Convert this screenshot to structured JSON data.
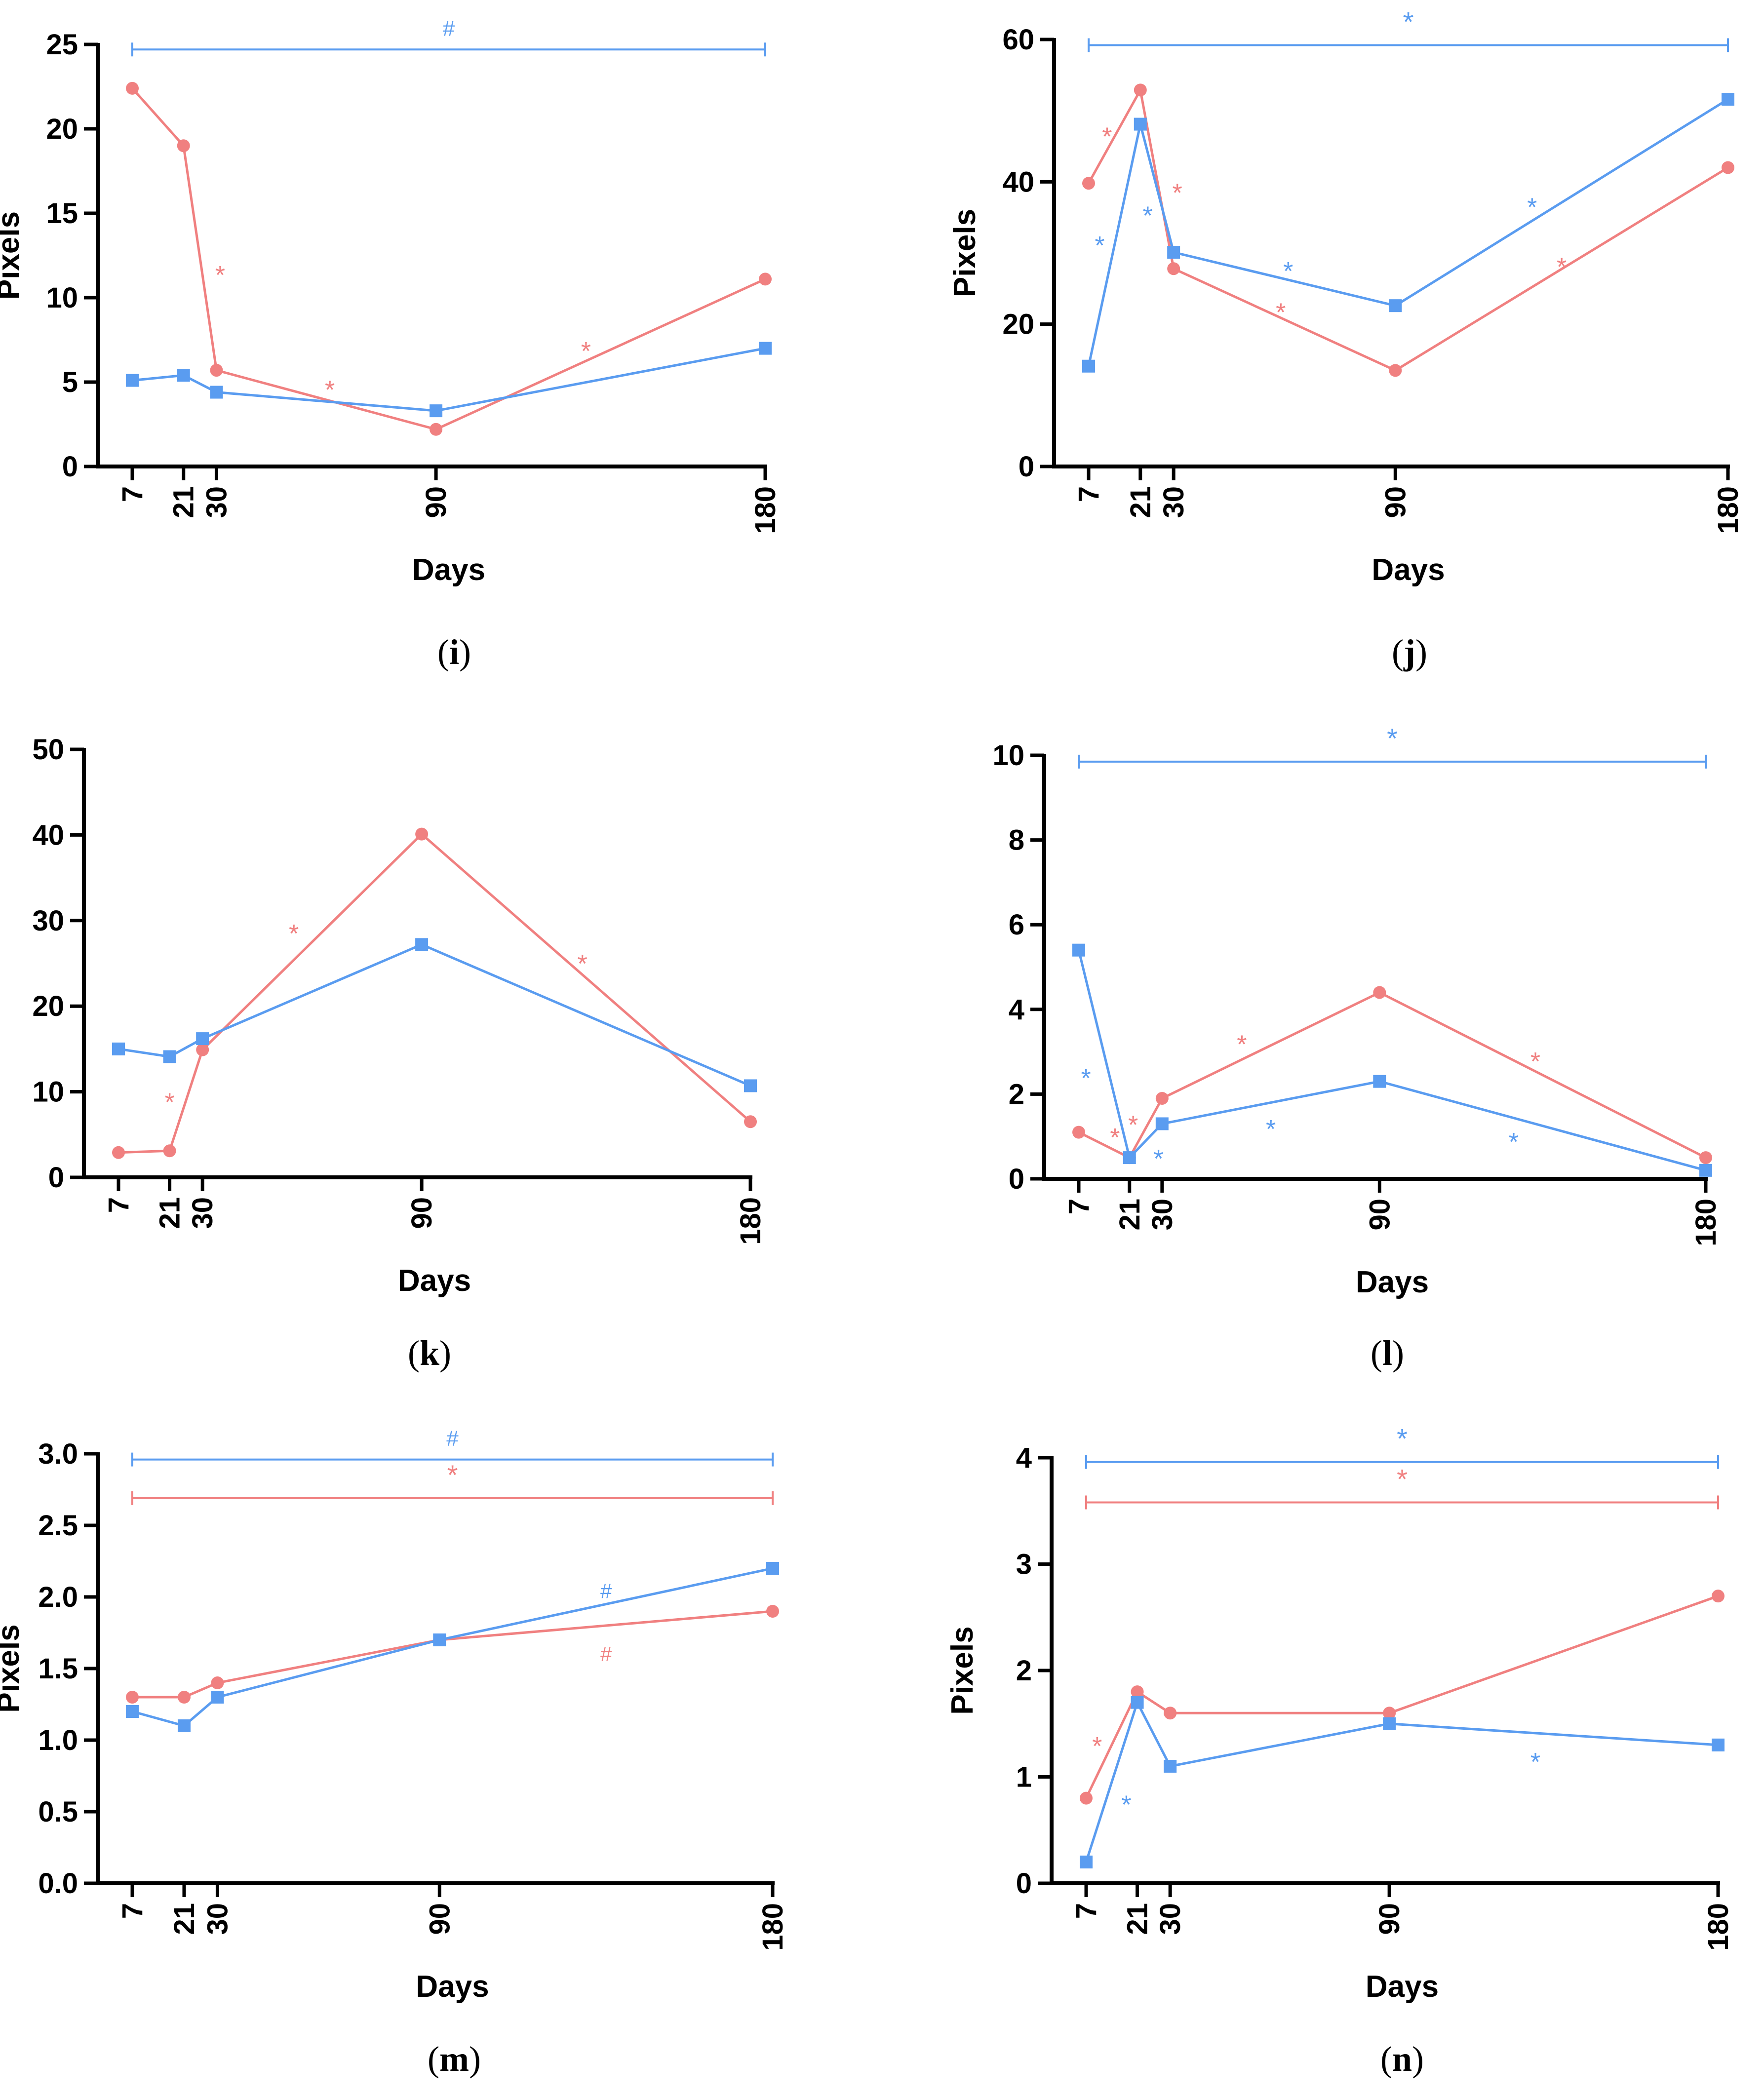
{
  "colors": {
    "red": "#F08080",
    "blue": "#5A9CF0",
    "axis": "#000000"
  },
  "chart_data": [
    {
      "id": "i",
      "label_letter": "i",
      "type": "line",
      "ylabel": "Pixels",
      "xlabel": "Days",
      "x": [
        7,
        21,
        30,
        90,
        180
      ],
      "xticks": [
        "7",
        "21",
        "30",
        "90",
        "180"
      ],
      "ylim": [
        0,
        25
      ],
      "yticks": [
        "0",
        "5",
        "10",
        "15",
        "20",
        "25"
      ],
      "series": [
        {
          "name": "red",
          "marker": "circle",
          "values": [
            22.4,
            19.0,
            5.7,
            2.2,
            11.1
          ]
        },
        {
          "name": "blue",
          "marker": "square",
          "values": [
            5.1,
            5.4,
            4.4,
            3.3,
            7.0
          ]
        }
      ],
      "annotations": [
        {
          "text": "*",
          "color": "red",
          "x": 31,
          "y": 11.4
        },
        {
          "text": "*",
          "color": "red",
          "x": 61,
          "y": 4.6
        },
        {
          "text": "*",
          "color": "red",
          "x": 131,
          "y": 6.9
        }
      ],
      "brackets": [
        {
          "text": "#",
          "color": "blue",
          "x1": 7,
          "x2": 180,
          "y": 24.7
        }
      ]
    },
    {
      "id": "j",
      "label_letter": "j",
      "type": "line",
      "ylabel": "Pixels",
      "xlabel": "Days",
      "x": [
        7,
        21,
        30,
        90,
        180
      ],
      "xticks": [
        "7",
        "21",
        "30",
        "90",
        "180"
      ],
      "ylim": [
        0,
        60
      ],
      "yticks": [
        "0",
        "20",
        "40",
        "60"
      ],
      "series": [
        {
          "name": "red",
          "marker": "circle",
          "values": [
            39.8,
            52.9,
            27.8,
            13.5,
            42.0
          ]
        },
        {
          "name": "blue",
          "marker": "square",
          "values": [
            14.1,
            48.1,
            30.1,
            22.6,
            51.6
          ]
        }
      ],
      "annotations": [
        {
          "text": "*",
          "color": "red",
          "x": 12,
          "y": 46.5
        },
        {
          "text": "*",
          "color": "blue",
          "x": 10,
          "y": 31.2
        },
        {
          "text": "*",
          "color": "blue",
          "x": 23,
          "y": 35.4
        },
        {
          "text": "*",
          "color": "red",
          "x": 31,
          "y": 38.6
        },
        {
          "text": "*",
          "color": "blue",
          "x": 61,
          "y": 27.6
        },
        {
          "text": "*",
          "color": "red",
          "x": 59,
          "y": 21.8
        },
        {
          "text": "*",
          "color": "blue",
          "x": 127,
          "y": 36.6
        },
        {
          "text": "*",
          "color": "red",
          "x": 135,
          "y": 28.2
        }
      ],
      "brackets": [
        {
          "text": "*",
          "color": "blue",
          "x1": 7,
          "x2": 180,
          "y": 59.2
        }
      ]
    },
    {
      "id": "k",
      "label_letter": "k",
      "type": "line",
      "ylabel": "",
      "xlabel": "Days",
      "x": [
        7,
        21,
        30,
        90,
        180
      ],
      "xticks": [
        "7",
        "21",
        "30",
        "90",
        "180"
      ],
      "ylim": [
        0,
        50
      ],
      "yticks": [
        "0",
        "10",
        "20",
        "30",
        "40",
        "50"
      ],
      "series": [
        {
          "name": "red",
          "marker": "circle",
          "values": [
            2.9,
            3.1,
            14.9,
            40.1,
            6.5
          ]
        },
        {
          "name": "blue",
          "marker": "square",
          "values": [
            15.0,
            14.1,
            16.2,
            27.2,
            10.7
          ]
        }
      ],
      "annotations": [
        {
          "text": "*",
          "color": "red",
          "x": 21,
          "y": 8.9
        },
        {
          "text": "*",
          "color": "red",
          "x": 55,
          "y": 28.6
        },
        {
          "text": "*",
          "color": "red",
          "x": 134,
          "y": 25.1
        }
      ],
      "brackets": []
    },
    {
      "id": "l",
      "label_letter": "l",
      "type": "line",
      "ylabel": "",
      "xlabel": "Days",
      "x": [
        7,
        21,
        30,
        90,
        180
      ],
      "xticks": [
        "7",
        "21",
        "30",
        "90",
        "180"
      ],
      "ylim": [
        0,
        10
      ],
      "yticks": [
        "0",
        "2",
        "4",
        "6",
        "8",
        "10"
      ],
      "series": [
        {
          "name": "red",
          "marker": "circle",
          "values": [
            1.1,
            0.5,
            1.9,
            4.4,
            0.5
          ]
        },
        {
          "name": "blue",
          "marker": "square",
          "values": [
            5.4,
            0.5,
            1.3,
            2.3,
            0.2
          ]
        }
      ],
      "annotations": [
        {
          "text": "*",
          "color": "blue",
          "x": 9,
          "y": 2.4
        },
        {
          "text": "*",
          "color": "red",
          "x": 17,
          "y": 1.0
        },
        {
          "text": "*",
          "color": "red",
          "x": 22,
          "y": 1.3
        },
        {
          "text": "*",
          "color": "blue",
          "x": 29,
          "y": 0.5
        },
        {
          "text": "*",
          "color": "red",
          "x": 52,
          "y": 3.2
        },
        {
          "text": "*",
          "color": "blue",
          "x": 60,
          "y": 1.2
        },
        {
          "text": "*",
          "color": "blue",
          "x": 127,
          "y": 0.9
        },
        {
          "text": "*",
          "color": "red",
          "x": 133,
          "y": 2.8
        }
      ],
      "brackets": [
        {
          "text": "*",
          "color": "blue",
          "x1": 7,
          "x2": 180,
          "y": 9.85
        }
      ]
    },
    {
      "id": "m",
      "label_letter": "m",
      "type": "line",
      "ylabel": "Pixels",
      "xlabel": "Days",
      "x": [
        7,
        21,
        30,
        90,
        180
      ],
      "xticks": [
        "7",
        "21",
        "30",
        "90",
        "180"
      ],
      "ylim": [
        0,
        3
      ],
      "yticks": [
        "0.0",
        "0.5",
        "1.0",
        "1.5",
        "2.0",
        "2.5",
        "3.0"
      ],
      "series": [
        {
          "name": "red",
          "marker": "circle",
          "values": [
            1.3,
            1.3,
            1.4,
            1.7,
            1.9
          ]
        },
        {
          "name": "blue",
          "marker": "square",
          "values": [
            1.2,
            1.1,
            1.3,
            1.7,
            2.2
          ]
        }
      ],
      "annotations": [
        {
          "text": "#",
          "color": "blue",
          "x": 135,
          "y": 2.06
        },
        {
          "text": "#",
          "color": "red",
          "x": 135,
          "y": 1.62
        }
      ],
      "brackets": [
        {
          "text": "#",
          "color": "blue",
          "x1": 7,
          "x2": 180,
          "y": 2.96
        },
        {
          "text": "*",
          "color": "red",
          "x1": 7,
          "x2": 180,
          "y": 2.69
        }
      ]
    },
    {
      "id": "n",
      "label_letter": "n",
      "type": "line",
      "ylabel": "Pixels",
      "xlabel": "Days",
      "x": [
        7,
        21,
        30,
        90,
        180
      ],
      "xticks": [
        "7",
        "21",
        "30",
        "90",
        "180"
      ],
      "ylim": [
        0,
        4
      ],
      "yticks": [
        "0",
        "1",
        "2",
        "3",
        "4"
      ],
      "series": [
        {
          "name": "red",
          "marker": "circle",
          "values": [
            0.8,
            1.8,
            1.6,
            1.6,
            2.7
          ]
        },
        {
          "name": "blue",
          "marker": "square",
          "values": [
            0.2,
            1.7,
            1.1,
            1.5,
            1.3
          ]
        }
      ],
      "annotations": [
        {
          "text": "*",
          "color": "red",
          "x": 10,
          "y": 1.3
        },
        {
          "text": "*",
          "color": "blue",
          "x": 18,
          "y": 0.75
        },
        {
          "text": "*",
          "color": "blue",
          "x": 130,
          "y": 1.15
        }
      ],
      "brackets": [
        {
          "text": "*",
          "color": "blue",
          "x1": 7,
          "x2": 180,
          "y": 3.96
        },
        {
          "text": "*",
          "color": "red",
          "x1": 7,
          "x2": 180,
          "y": 3.58
        }
      ]
    }
  ]
}
